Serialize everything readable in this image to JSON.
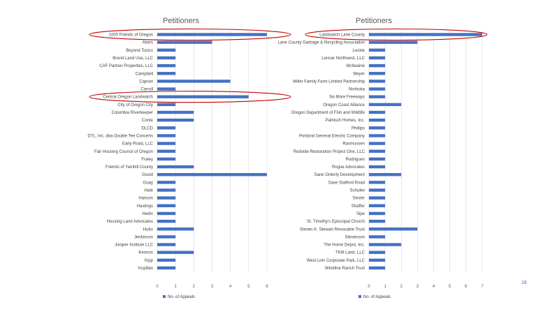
{
  "slide_number": "18",
  "colors": {
    "bar": "#4472c4",
    "highlight": "#c00000",
    "grid": "#d9d9d9"
  },
  "chart_data": [
    {
      "type": "bar",
      "orientation": "horizontal",
      "title": "Petitioners",
      "legend": "No. of Appeals",
      "legend_position": "bottom-left",
      "xlim": [
        0,
        6
      ],
      "xticks": [
        "0",
        "1",
        "2",
        "3",
        "4",
        "5",
        "6"
      ],
      "grid": true,
      "categories": [
        "1000 Friends of Oregon",
        "Akers",
        "Beyond Toxics",
        "Brand Land Use, LLC",
        "CAF Partner Properties, LLC",
        "Campbell",
        "Caprari",
        "Carroll",
        "Central Oregon Landwatch",
        "City of Oregon City",
        "Columbia Riverkeeper",
        "Conte",
        "DLCD",
        "DTL, Inc. dba Double Tee Concerts",
        "Early Road, LLC",
        "Fair Housing Council of Oregon",
        "Fraley",
        "Friends of Yamhill County",
        "Gould",
        "Guay",
        "Hale",
        "Hanson",
        "Hastings",
        "Hedin",
        "Housing Land Advocates",
        "Hutto",
        "Jenkinson",
        "Juniper Institute LLC",
        "Kennon",
        "Kipp",
        "Kupillas"
      ],
      "values": [
        6,
        3,
        1,
        1,
        1,
        1,
        4,
        1,
        5,
        1,
        2,
        2,
        1,
        1,
        1,
        1,
        1,
        2,
        6,
        1,
        1,
        1,
        1,
        1,
        1,
        2,
        1,
        1,
        2,
        1,
        1
      ],
      "highlighted": [
        "1000 Friends of Oregon",
        "Central Oregon Landwatch"
      ]
    },
    {
      "type": "bar",
      "orientation": "horizontal",
      "title": "Petitioners",
      "legend": "No. of Appeals",
      "legend_position": "bottom-left",
      "xlim": [
        0,
        7
      ],
      "xticks": [
        "0",
        "1",
        "2",
        "3",
        "4",
        "5",
        "6",
        "7"
      ],
      "grid": true,
      "categories": [
        "Landwatch Lane County",
        "Lane County Garbage & Recycling Association",
        "Leckie",
        "Lennar Northwest, LLC",
        "McIlwaine",
        "Meyer",
        "Miller Family Farm Limited Partnership",
        "Nishioka",
        "No More Freeways",
        "Oregon Coast Alliance",
        "Oregon Department of Fish and Wildlife",
        "Pahlisch Homes, Inc.",
        "Phillips",
        "Portland General Electric Company",
        "Rasmussen",
        "Redside Restoration Project One, LLC",
        "Rodrigues",
        "Rogue Advocates",
        "Sane Orderly Development",
        "Save Stafford Road",
        "Schulke",
        "Sester",
        "Shaffer",
        "Sipe",
        "St. Timothy's Episcopal Church",
        "Steven K. Stewart Revocable Trust",
        "Stevenson",
        "The Home Depot, Inc.",
        "TKM Land, LLC",
        "West Linn Corporate Park, LLC",
        "Windline Ranch Trust"
      ],
      "values": [
        7,
        3,
        1,
        1,
        1,
        1,
        1,
        1,
        1,
        2,
        1,
        1,
        1,
        1,
        1,
        1,
        1,
        1,
        2,
        1,
        1,
        1,
        1,
        1,
        1,
        3,
        1,
        2,
        1,
        1,
        1
      ],
      "highlighted": [
        "Landwatch Lane County"
      ]
    }
  ]
}
